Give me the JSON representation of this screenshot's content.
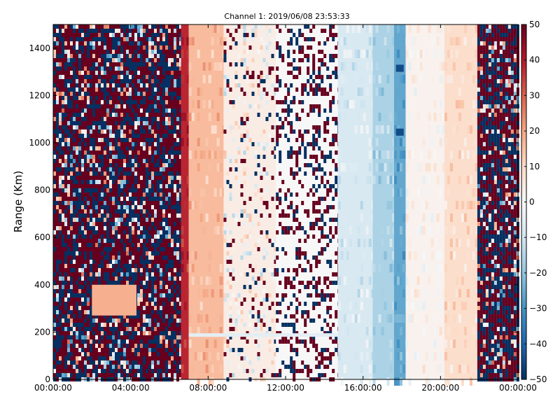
{
  "chart_data": {
    "type": "heatmap",
    "title": "Channel 1: 2019/06/08 23:53:33",
    "xlabel": "",
    "ylabel": "Range (Km)",
    "x_ticks": [
      "00:00:00",
      "04:00:00",
      "08:00:00",
      "12:00:00",
      "16:00:00",
      "20:00:00",
      "00:00:00"
    ],
    "x_range_hours": [
      0,
      24
    ],
    "y_ticks": [
      0,
      200,
      400,
      600,
      800,
      1000,
      1200,
      1400
    ],
    "ylim": [
      0,
      1500
    ],
    "colorbar": {
      "ticks": [
        50,
        40,
        30,
        20,
        10,
        0,
        -10,
        -20,
        -30,
        -40,
        -50
      ],
      "range": [
        -50,
        50
      ],
      "colormap": "RdBu_r",
      "low_color": "#053061",
      "mid_color": "#f7f7f7",
      "high_color": "#67001f"
    },
    "grid": false,
    "bands": [
      {
        "start_h": 0.0,
        "end_h": 6.6,
        "pattern": "noise",
        "description_value_range": [
          -50,
          50
        ]
      },
      {
        "start_h": 6.6,
        "end_h": 7.0,
        "pattern": "smooth",
        "value": 38
      },
      {
        "start_h": 7.0,
        "end_h": 8.8,
        "pattern": "smooth",
        "value": 16
      },
      {
        "start_h": 8.8,
        "end_h": 11.5,
        "pattern": "sparse",
        "value": 4
      },
      {
        "start_h": 11.5,
        "end_h": 14.7,
        "pattern": "mixed",
        "value": 0
      },
      {
        "start_h": 14.7,
        "end_h": 16.5,
        "pattern": "smooth",
        "value": -8
      },
      {
        "start_h": 16.5,
        "end_h": 17.6,
        "pattern": "smooth",
        "value": -16
      },
      {
        "start_h": 17.6,
        "end_h": 18.2,
        "pattern": "smooth",
        "value": -26
      },
      {
        "start_h": 18.2,
        "end_h": 20.2,
        "pattern": "smooth",
        "value": 2
      },
      {
        "start_h": 20.2,
        "end_h": 21.9,
        "pattern": "smooth",
        "value": 9
      },
      {
        "start_h": 21.9,
        "end_h": 24.0,
        "pattern": "noise",
        "description_value_range": [
          -50,
          50
        ]
      }
    ],
    "features": [
      {
        "start_h": 2.0,
        "end_h": 4.3,
        "range_km": [
          270,
          400
        ],
        "value": 18
      },
      {
        "start_h": 7.0,
        "end_h": 14.7,
        "range_km": [
          180,
          195
        ],
        "value": -5
      },
      {
        "start_h": 17.7,
        "end_h": 18.1,
        "range_km": [
          1030,
          1060
        ],
        "value": -45
      },
      {
        "start_h": 17.7,
        "end_h": 18.1,
        "range_km": [
          1300,
          1330
        ],
        "value": -45
      }
    ]
  }
}
